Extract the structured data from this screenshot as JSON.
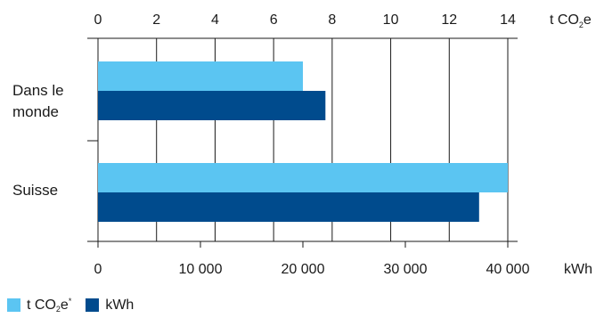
{
  "chart_data": {
    "type": "bar",
    "orientation": "horizontal",
    "categories": [
      "Dans le monde",
      "Suisse"
    ],
    "category_label_lines": [
      [
        "Dans le",
        "monde"
      ],
      [
        "Suisse"
      ]
    ],
    "series": [
      {
        "name": "t CO2e*",
        "axis": "top",
        "color": "#5bc5f2",
        "values": [
          7.0,
          14.0
        ]
      },
      {
        "name": "kWh",
        "axis": "bottom",
        "color": "#004b8d",
        "values": [
          22200,
          37200
        ]
      }
    ],
    "axes": {
      "top": {
        "ticks": [
          "0",
          "2",
          "4",
          "6",
          "8",
          "10",
          "12",
          "14"
        ],
        "values": [
          0,
          2,
          4,
          6,
          8,
          10,
          12,
          14
        ],
        "range": [
          0,
          14
        ],
        "unit": {
          "main": "t CO",
          "sub": "2",
          "tail": "e"
        }
      },
      "bottom": {
        "ticks": [
          "0",
          "10 000",
          "20 000",
          "30 000",
          "40 000"
        ],
        "values": [
          0,
          10000,
          20000,
          30000,
          40000
        ],
        "range": [
          0,
          40000
        ],
        "unit": "kWh"
      }
    },
    "grid": true,
    "legend": {
      "placement": "bottom-left",
      "items": [
        {
          "main": "t CO",
          "sub": "2",
          "tail": "e",
          "sup": "*"
        },
        {
          "main": "kWh"
        }
      ]
    }
  }
}
